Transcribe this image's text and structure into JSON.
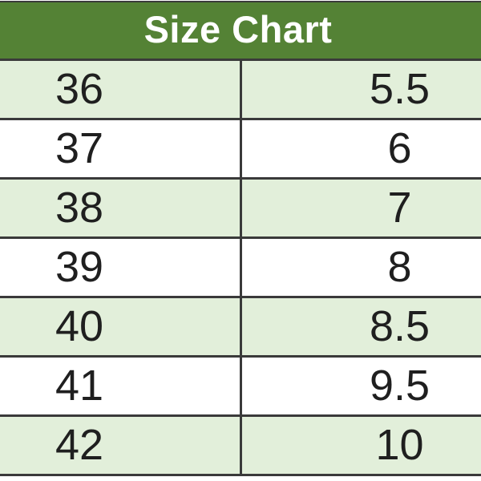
{
  "size_chart": {
    "title": "Size Chart",
    "rows": [
      {
        "left": "36",
        "right": "5.5"
      },
      {
        "left": "37",
        "right": "6"
      },
      {
        "left": "38",
        "right": "7"
      },
      {
        "left": "39",
        "right": "8"
      },
      {
        "left": "40",
        "right": "8.5"
      },
      {
        "left": "41",
        "right": "9.5"
      },
      {
        "left": "42",
        "right": "10"
      }
    ]
  },
  "chart_data": {
    "type": "table",
    "title": "Size Chart",
    "rows": [
      [
        36,
        5.5
      ],
      [
        37,
        6
      ],
      [
        38,
        7
      ],
      [
        39,
        8
      ],
      [
        40,
        8.5
      ],
      [
        41,
        9.5
      ],
      [
        42,
        10
      ]
    ]
  },
  "colors": {
    "header_bg": "#548235",
    "header_text": "#ffffff",
    "row_alt_bg": "#e2efda",
    "row_bg": "#ffffff",
    "border": "#3a3a3a",
    "cell_text": "#1f1f1f",
    "page_bg": "#ffffff"
  }
}
